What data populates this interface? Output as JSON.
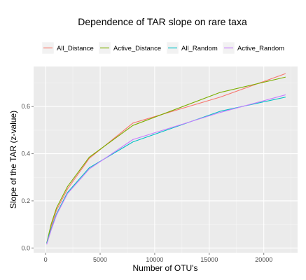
{
  "chart_data": {
    "type": "line",
    "title": "Dependence of TAR slope on rare taxa",
    "xlabel": "Number of OTU's",
    "ylabel": "Slope of the TAR (z-value)",
    "xlim": [
      -1100,
      23100
    ],
    "ylim": [
      -0.02,
      0.77
    ],
    "xticks": [
      0,
      5000,
      10000,
      15000,
      20000
    ],
    "yticks": [
      0.0,
      0.2,
      0.4,
      0.6
    ],
    "ytick_labels": [
      "0.0",
      "0.2",
      "0.4",
      "0.6"
    ],
    "grid": true,
    "legend_position": "top",
    "series": [
      {
        "name": "All_Distance",
        "color": "#F8766D",
        "x": [
          100,
          500,
          1000,
          2000,
          4000,
          8000,
          16000,
          22000
        ],
        "y": [
          0.02,
          0.09,
          0.16,
          0.25,
          0.38,
          0.53,
          0.64,
          0.74
        ]
      },
      {
        "name": "Active_Distance",
        "color": "#7CAE00",
        "x": [
          100,
          500,
          1000,
          2000,
          4000,
          8000,
          16000,
          22000
        ],
        "y": [
          0.02,
          0.1,
          0.17,
          0.26,
          0.385,
          0.52,
          0.66,
          0.725
        ]
      },
      {
        "name": "All_Random",
        "color": "#00BFC4",
        "x": [
          100,
          500,
          1000,
          2000,
          4000,
          8000,
          16000,
          22000
        ],
        "y": [
          0.02,
          0.08,
          0.145,
          0.235,
          0.34,
          0.45,
          0.58,
          0.64
        ]
      },
      {
        "name": "Active_Random",
        "color": "#C77CFF",
        "x": [
          100,
          500,
          1000,
          2000,
          4000,
          8000,
          16000,
          22000
        ],
        "y": [
          0.015,
          0.075,
          0.14,
          0.23,
          0.335,
          0.46,
          0.575,
          0.65
        ]
      }
    ]
  }
}
